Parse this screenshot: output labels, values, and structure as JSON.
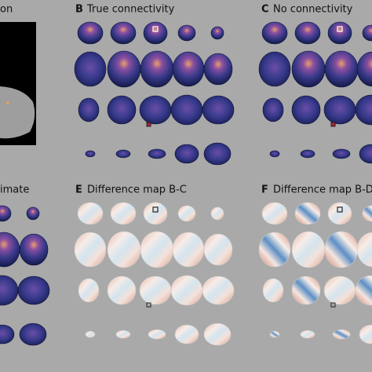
{
  "panels": [
    {
      "title": "on"
    },
    {
      "letter": "B",
      "title": "True connectivity"
    },
    {
      "letter": "C",
      "title": "No connectivity"
    },
    {
      "title": "imate"
    },
    {
      "letter": "E",
      "title": "Difference map B-C"
    },
    {
      "letter": "F",
      "title": "Difference map B-D"
    }
  ]
}
